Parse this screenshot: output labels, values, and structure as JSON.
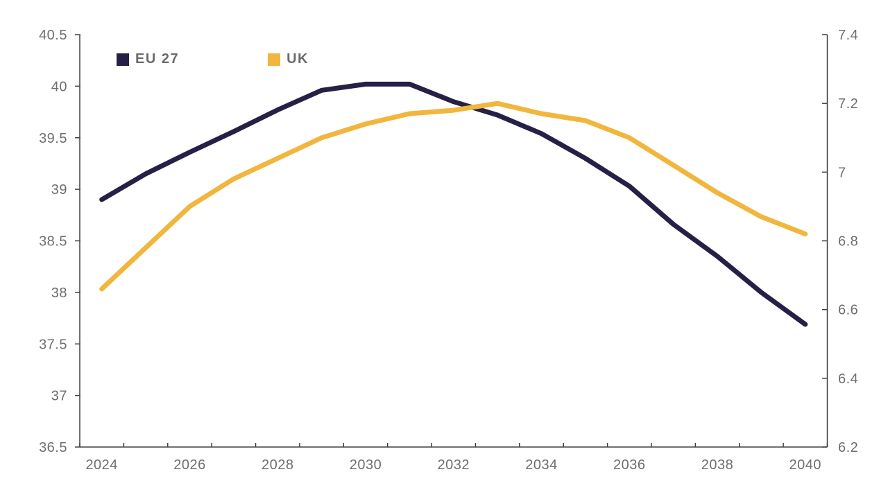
{
  "page": {
    "background_color": "#ffffff"
  },
  "legend": {
    "items": [
      {
        "label": "EU 27",
        "color": "#262047"
      },
      {
        "label": "UK",
        "color": "#F1B63E"
      }
    ]
  },
  "chart_data": {
    "type": "line",
    "title": "",
    "x": [
      2024,
      2025,
      2026,
      2027,
      2028,
      2029,
      2030,
      2031,
      2032,
      2033,
      2034,
      2035,
      2036,
      2037,
      2038,
      2039,
      2040
    ],
    "x_tick_labels": [
      "2024",
      "2026",
      "2028",
      "2030",
      "2032",
      "2034",
      "2036",
      "2038",
      "2040"
    ],
    "series": [
      {
        "name": "EU 27",
        "axis": "left",
        "color": "#262047",
        "values": [
          38.9,
          39.15,
          39.36,
          39.56,
          39.77,
          39.96,
          40.02,
          40.02,
          39.85,
          39.72,
          39.54,
          39.3,
          39.03,
          38.66,
          38.35,
          38.0,
          37.69
        ]
      },
      {
        "name": "UK",
        "axis": "right",
        "color": "#F1B63E",
        "values": [
          6.66,
          6.78,
          6.9,
          6.98,
          7.04,
          7.1,
          7.14,
          7.17,
          7.18,
          7.2,
          7.17,
          7.15,
          7.1,
          7.02,
          6.94,
          6.87,
          6.82
        ]
      }
    ],
    "left_axis": {
      "min": 36.5,
      "max": 40.5,
      "step": 0.5,
      "tick_labels": [
        "36.5",
        "37",
        "37.5",
        "38",
        "38.5",
        "39",
        "39.5",
        "40",
        "40.5"
      ]
    },
    "right_axis": {
      "min": 6.2,
      "max": 7.4,
      "step": 0.2,
      "tick_labels": [
        "6.2",
        "6.4",
        "6.6",
        "6.8",
        "7",
        "7.2",
        "7.4"
      ]
    },
    "grid": false,
    "legend_position": "top-left",
    "axis_color": "#404040",
    "tick_text_color": "#6e6e6e",
    "line_width": 7
  }
}
